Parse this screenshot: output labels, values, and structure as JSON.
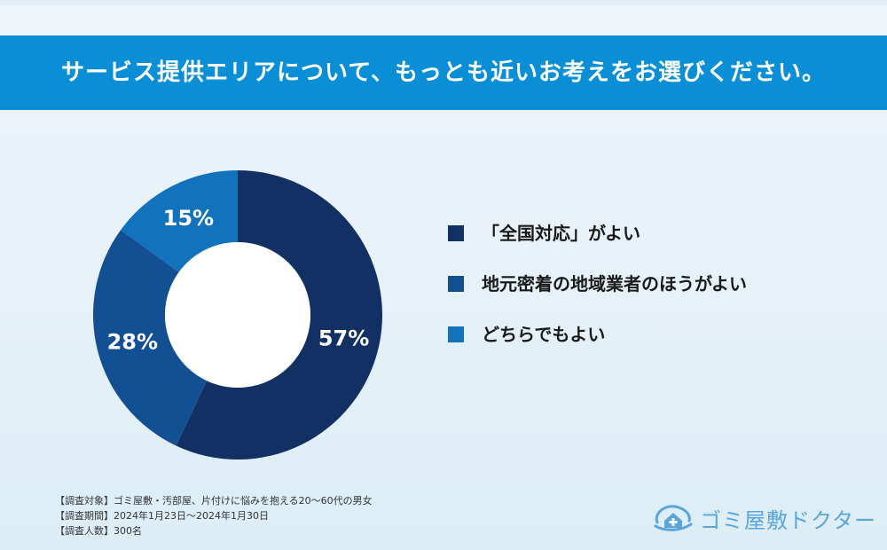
{
  "title": "サービス提供エリアについて、もっとも近いお考えをお選びください。",
  "chart_data": {
    "type": "pie",
    "style": "donut",
    "categories": [
      "「全国対応」がよい",
      "地元密着の地域業者のほうがよい",
      "どちらでもよい"
    ],
    "values": [
      57,
      28,
      15
    ],
    "value_labels": [
      "57%",
      "28%",
      "15%"
    ],
    "colors": [
      "#133064",
      "#134f93",
      "#1272bc"
    ],
    "legend_position": "right"
  },
  "notes": [
    "【調査対象】ゴミ屋敷・汚部屋、片付けに悩みを抱える20〜60代の男女",
    "【調査期間】2024年1月23日〜2024年1月30日",
    "【調査人数】300名"
  ],
  "logo": {
    "text": "ゴミ屋敷ドクター",
    "icon": "house-with-cross-logo-icon",
    "color": "#5aa6dc"
  }
}
